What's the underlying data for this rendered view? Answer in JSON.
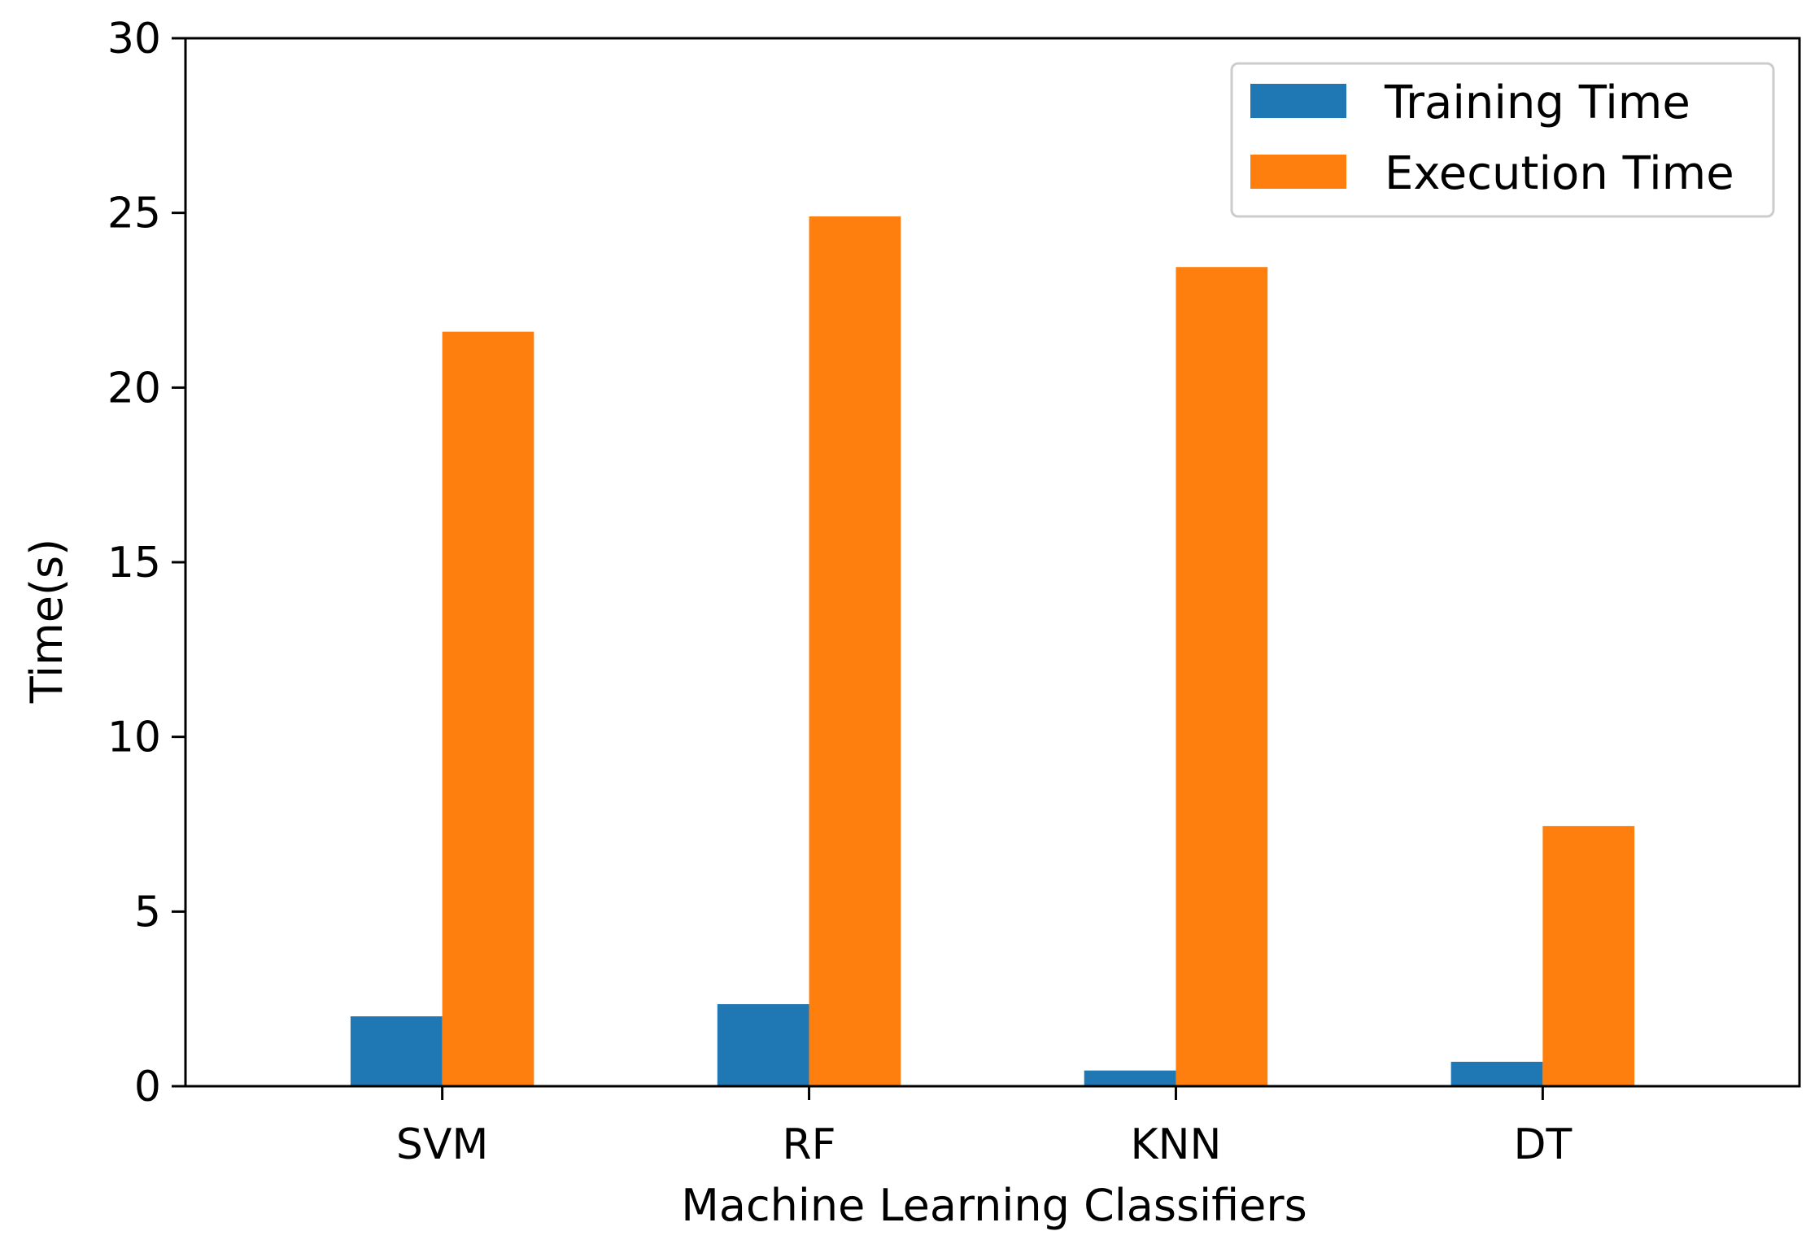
{
  "chart_data": {
    "type": "bar",
    "categories": [
      "SVM",
      "RF",
      "KNN",
      "DT"
    ],
    "series": [
      {
        "name": "Training Time",
        "values": [
          2.0,
          2.35,
          0.45,
          0.7
        ],
        "color": "#1f77b4"
      },
      {
        "name": "Execution Time",
        "values": [
          21.6,
          24.9,
          23.45,
          7.45
        ],
        "color": "#ff7f0e"
      }
    ],
    "title": "",
    "xlabel": "Machine Learning Classifiers",
    "ylabel": "Time(s)",
    "ylim": [
      0,
      30
    ],
    "yticks": [
      "0",
      "5",
      "10",
      "15",
      "20",
      "25",
      "30"
    ],
    "grid": false,
    "legend_position": "top-right"
  }
}
